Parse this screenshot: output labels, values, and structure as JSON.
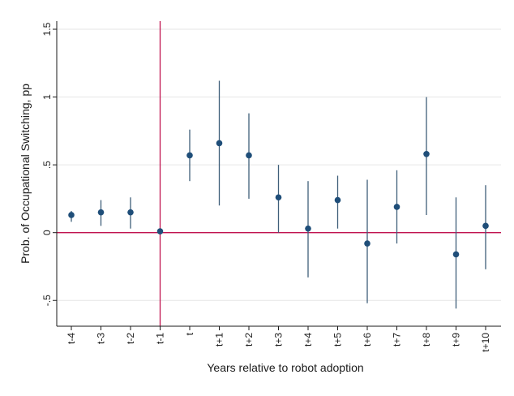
{
  "chart_data": {
    "type": "scatter",
    "title": "",
    "xlabel": "Years relative to robot adoption",
    "ylabel": "Prob. of Occupational Switching, pp",
    "categories": [
      "t-4",
      "t-3",
      "t-2",
      "t-1",
      "t",
      "t+1",
      "t+2",
      "t+3",
      "t+4",
      "t+5",
      "t+6",
      "t+7",
      "t+8",
      "t+9",
      "t+10"
    ],
    "series": [
      {
        "values": [
          0.13,
          0.15,
          0.15,
          0.01,
          0.57,
          0.66,
          0.57,
          0.26,
          0.03,
          0.24,
          -0.08,
          0.19,
          0.58,
          -0.16,
          0.05
        ],
        "ci_low": [
          0.08,
          0.05,
          0.03,
          0.01,
          0.38,
          0.2,
          0.25,
          0.0,
          -0.33,
          0.03,
          -0.52,
          -0.08,
          0.13,
          -0.56,
          -0.27
        ],
        "ci_high": [
          0.16,
          0.24,
          0.26,
          0.01,
          0.76,
          1.12,
          0.88,
          0.5,
          0.38,
          0.42,
          0.39,
          0.46,
          1.0,
          0.26,
          0.35
        ],
        "color": "#1f4e79"
      }
    ],
    "ylim": [
      -0.69,
      1.56
    ],
    "yticks": [
      -0.5,
      0,
      0.5,
      1,
      1.5
    ],
    "ytick_labels": [
      "-.5",
      "0",
      ".5",
      "1",
      "1.5"
    ],
    "reference_lines": {
      "horizontal_y": 0,
      "vertical_category": "t-1",
      "color": "#c0134f"
    },
    "grid": true,
    "grid_color": "#e6e6e6",
    "errorbar_color": "#3f5f7a",
    "legend": "none"
  }
}
